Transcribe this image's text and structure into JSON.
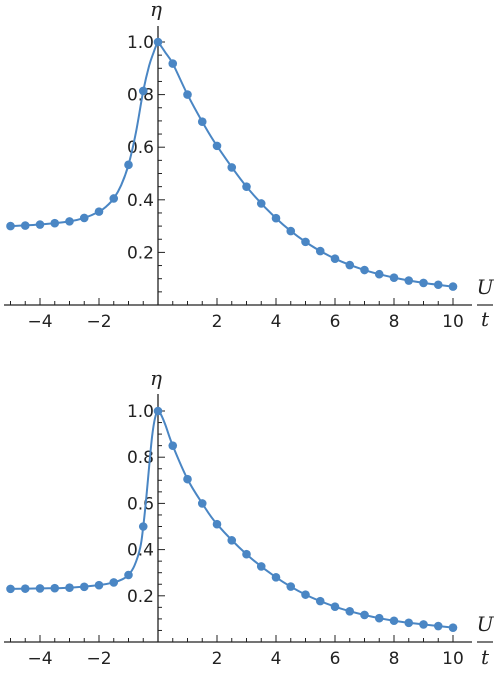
{
  "colors": {
    "series": "#4a86c4",
    "axis": "#222222"
  },
  "chart_data": [
    {
      "type": "line",
      "title": "",
      "xlabel": "U/t",
      "xlabel_num": "U",
      "xlabel_den": "t",
      "ylabel": "η",
      "xlim": [
        -5.2,
        10.4
      ],
      "ylim": [
        0.0,
        1.05
      ],
      "grid": false,
      "x_ticks": [
        -4,
        -2,
        2,
        4,
        6,
        8,
        10
      ],
      "x_tick_labels": [
        "−4",
        "−2",
        "2",
        "4",
        "6",
        "8",
        "10"
      ],
      "y_ticks": [
        0.2,
        0.4,
        0.6,
        0.8,
        1.0
      ],
      "y_tick_labels": [
        "0.2",
        "0.4",
        "0.6",
        "0.8",
        "1.0"
      ],
      "series": [
        {
          "points_x": [
            -5.0,
            -4.5,
            -4.0,
            -3.5,
            -3.0,
            -2.5,
            -2.0,
            -1.5,
            -1.0,
            -0.5,
            0.0,
            0.5,
            1.0,
            1.5,
            2.0,
            2.5,
            3.0,
            3.5,
            4.0,
            4.5,
            5.0,
            5.5,
            6.0,
            6.5,
            7.0,
            7.5,
            8.0,
            8.5,
            9.0,
            9.5,
            10.0
          ],
          "points_y": [
            0.3,
            0.302,
            0.306,
            0.311,
            0.318,
            0.331,
            0.355,
            0.405,
            0.533,
            0.814,
            1.0,
            0.918,
            0.8,
            0.697,
            0.605,
            0.523,
            0.45,
            0.386,
            0.33,
            0.281,
            0.24,
            0.205,
            0.176,
            0.152,
            0.133,
            0.117,
            0.104,
            0.093,
            0.084,
            0.077,
            0.07
          ],
          "curve_x": [
            -5.0,
            -4.0,
            -3.0,
            -2.5,
            -2.0,
            -1.75,
            -1.5,
            -1.25,
            -1.0,
            -0.75,
            -0.5,
            -0.3,
            -0.15,
            -0.05,
            0.0,
            0.1,
            0.25,
            0.5,
            1.0,
            1.5,
            2.0,
            3.0,
            4.0,
            5.0,
            6.0,
            7.0,
            8.0,
            9.0,
            10.0
          ],
          "curve_y": [
            0.3,
            0.306,
            0.318,
            0.331,
            0.355,
            0.375,
            0.405,
            0.455,
            0.533,
            0.655,
            0.814,
            0.91,
            0.96,
            0.99,
            1.0,
            0.985,
            0.96,
            0.918,
            0.8,
            0.697,
            0.605,
            0.45,
            0.33,
            0.24,
            0.176,
            0.133,
            0.104,
            0.084,
            0.07
          ]
        }
      ]
    },
    {
      "type": "line",
      "title": "",
      "xlabel": "U/t",
      "xlabel_num": "U",
      "xlabel_den": "t",
      "ylabel": "η",
      "xlim": [
        -5.2,
        10.4
      ],
      "ylim": [
        0.0,
        1.05
      ],
      "grid": false,
      "x_ticks": [
        -4,
        -2,
        2,
        4,
        6,
        8,
        10
      ],
      "x_tick_labels": [
        "−4",
        "−2",
        "2",
        "4",
        "6",
        "8",
        "10"
      ],
      "y_ticks": [
        0.2,
        0.4,
        0.6,
        0.8,
        1.0
      ],
      "y_tick_labels": [
        "0.2",
        "0.4",
        "0.6",
        "0.8",
        "1.0"
      ],
      "series": [
        {
          "points_x": [
            -5.0,
            -4.5,
            -4.0,
            -3.5,
            -3.0,
            -2.5,
            -2.0,
            -1.5,
            -1.0,
            -0.5,
            0.0,
            0.5,
            1.0,
            1.5,
            2.0,
            2.5,
            3.0,
            3.5,
            4.0,
            4.5,
            5.0,
            5.5,
            6.0,
            6.5,
            7.0,
            7.5,
            8.0,
            8.5,
            9.0,
            9.5,
            10.0
          ],
          "points_y": [
            0.23,
            0.231,
            0.232,
            0.233,
            0.235,
            0.239,
            0.246,
            0.258,
            0.29,
            0.5,
            1.0,
            0.85,
            0.705,
            0.6,
            0.51,
            0.44,
            0.38,
            0.327,
            0.28,
            0.24,
            0.205,
            0.177,
            0.153,
            0.133,
            0.117,
            0.103,
            0.092,
            0.083,
            0.076,
            0.069,
            0.062
          ],
          "curve_x": [
            -5.0,
            -4.0,
            -3.0,
            -2.0,
            -1.5,
            -1.2,
            -1.0,
            -0.8,
            -0.6,
            -0.5,
            -0.4,
            -0.3,
            -0.2,
            -0.1,
            0.0,
            0.1,
            0.25,
            0.5,
            1.0,
            1.5,
            2.0,
            3.0,
            4.0,
            5.0,
            6.0,
            7.0,
            8.0,
            9.0,
            10.0
          ],
          "curve_y": [
            0.23,
            0.232,
            0.235,
            0.246,
            0.258,
            0.272,
            0.29,
            0.33,
            0.41,
            0.5,
            0.62,
            0.76,
            0.89,
            0.97,
            1.0,
            0.985,
            0.94,
            0.85,
            0.705,
            0.6,
            0.51,
            0.38,
            0.28,
            0.205,
            0.153,
            0.117,
            0.092,
            0.076,
            0.062
          ]
        }
      ]
    }
  ]
}
